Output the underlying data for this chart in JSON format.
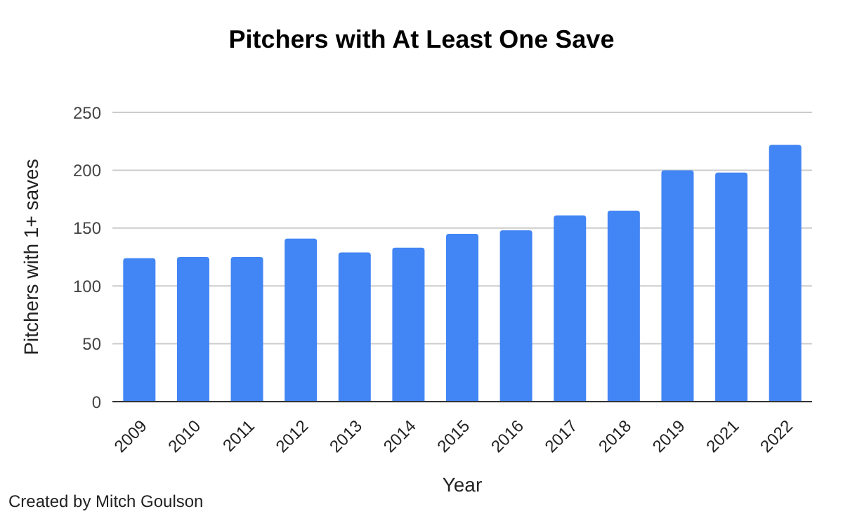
{
  "chart_data": {
    "type": "bar",
    "title": "Pitchers with At Least One Save",
    "xlabel": "Year",
    "ylabel": "Pitchers with 1+ saves",
    "categories": [
      "2009",
      "2010",
      "2011",
      "2012",
      "2013",
      "2014",
      "2015",
      "2016",
      "2017",
      "2018",
      "2019",
      "2021",
      "2022"
    ],
    "values": [
      124,
      125,
      125,
      141,
      129,
      133,
      145,
      148,
      161,
      165,
      200,
      198,
      222
    ],
    "color": "#4285f4",
    "ylim": [
      0,
      250
    ],
    "yticks": [
      0,
      50,
      100,
      150,
      200,
      250
    ],
    "grid": "y",
    "annotations": [
      "Created by Mitch Goulson"
    ]
  }
}
